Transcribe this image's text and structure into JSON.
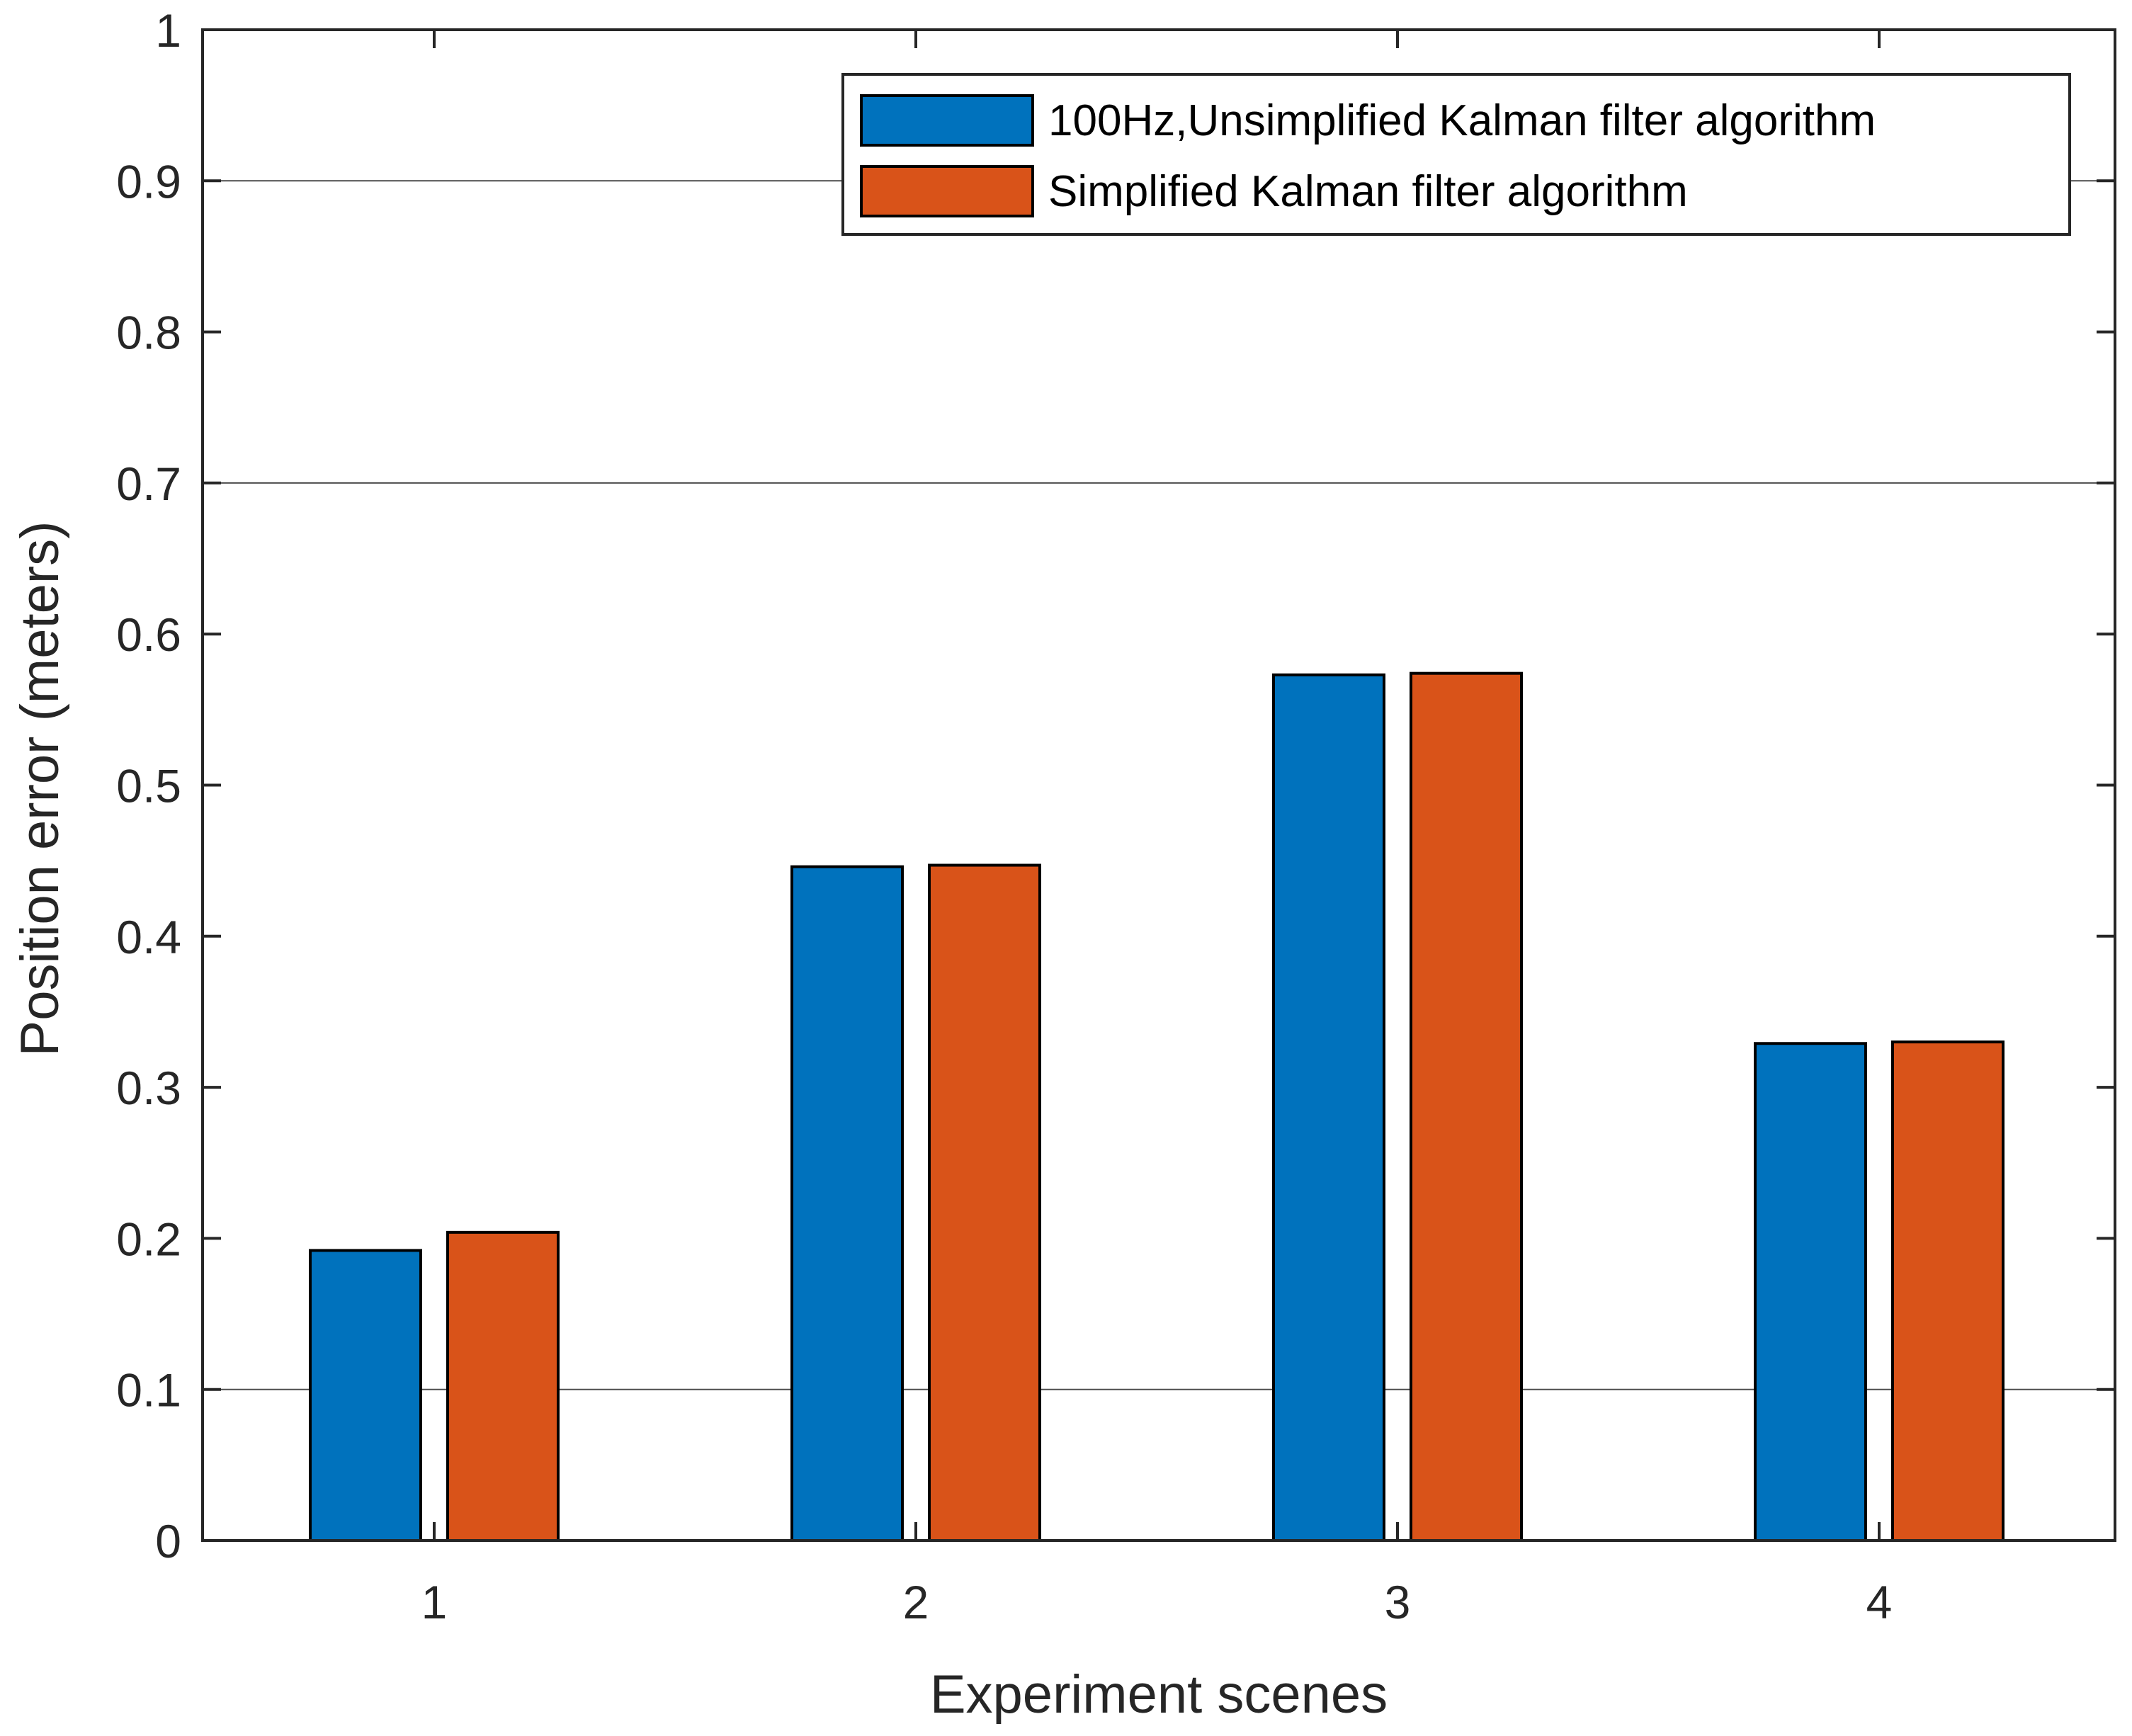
{
  "chart_data": {
    "type": "bar",
    "xlabel": "Experiment scenes",
    "ylabel": "Position error (meters)",
    "categories": [
      "1",
      "2",
      "3",
      "4"
    ],
    "ylim": [
      0,
      1
    ],
    "yticks": [
      "0",
      "0.1",
      "0.2",
      "0.3",
      "0.4",
      "0.5",
      "0.6",
      "0.7",
      "0.8",
      "0.9",
      "1"
    ],
    "gridlines_y": [
      0.1,
      0.7,
      0.9
    ],
    "legend_position": "top-right",
    "series": [
      {
        "name": "100Hz,Unsimplified Kalman filter algorithm",
        "color": "#0072BD",
        "values": [
          0.192,
          0.446,
          0.573,
          0.329
        ]
      },
      {
        "name": "Simplified Kalman filter algorithm",
        "color": "#D95319",
        "values": [
          0.204,
          0.447,
          0.574,
          0.33
        ]
      }
    ]
  }
}
